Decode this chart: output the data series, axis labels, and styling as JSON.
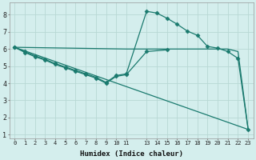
{
  "xlabel": "Humidex (Indice chaleur)",
  "ylabel": "",
  "bg_color": "#d4eeed",
  "grid_color": "#b8d8d5",
  "line_color": "#1a7a6e",
  "xlim": [
    -0.5,
    23.5
  ],
  "ylim": [
    0.8,
    8.7
  ],
  "xticks": [
    0,
    1,
    2,
    3,
    4,
    5,
    6,
    7,
    8,
    9,
    10,
    11,
    13,
    14,
    15,
    16,
    17,
    18,
    19,
    20,
    21,
    22,
    23
  ],
  "yticks": [
    1,
    2,
    3,
    4,
    5,
    6,
    7,
    8
  ],
  "lines": [
    {
      "x": [
        0,
        1,
        2,
        3,
        4,
        5,
        6,
        7,
        8,
        9,
        10,
        11,
        13,
        14,
        15,
        16,
        17,
        18,
        19,
        20,
        21,
        22,
        23
      ],
      "y": [
        6.1,
        5.85,
        5.6,
        5.4,
        5.15,
        4.95,
        4.75,
        4.55,
        4.35,
        4.05,
        4.45,
        4.55,
        8.2,
        8.1,
        7.8,
        7.45,
        7.05,
        6.8,
        6.15,
        6.05,
        5.85,
        5.45,
        1.3
      ],
      "marker": "D",
      "markersize": 2.5,
      "lw": 0.9
    },
    {
      "x": [
        0,
        11,
        15,
        19,
        21,
        22,
        23
      ],
      "y": [
        6.1,
        6.0,
        6.0,
        6.0,
        6.0,
        5.85,
        1.3
      ],
      "marker": null,
      "markersize": 0,
      "lw": 0.9
    },
    {
      "x": [
        0,
        23
      ],
      "y": [
        6.1,
        1.3
      ],
      "marker": null,
      "markersize": 0,
      "lw": 0.9
    },
    {
      "x": [
        0,
        1,
        2,
        3,
        4,
        5,
        6,
        7,
        8,
        9,
        10,
        11,
        13,
        15
      ],
      "y": [
        6.1,
        5.8,
        5.55,
        5.35,
        5.1,
        4.9,
        4.7,
        4.5,
        4.3,
        4.0,
        4.4,
        4.5,
        5.85,
        5.95
      ],
      "marker": "D",
      "markersize": 2.5,
      "lw": 0.9
    }
  ]
}
